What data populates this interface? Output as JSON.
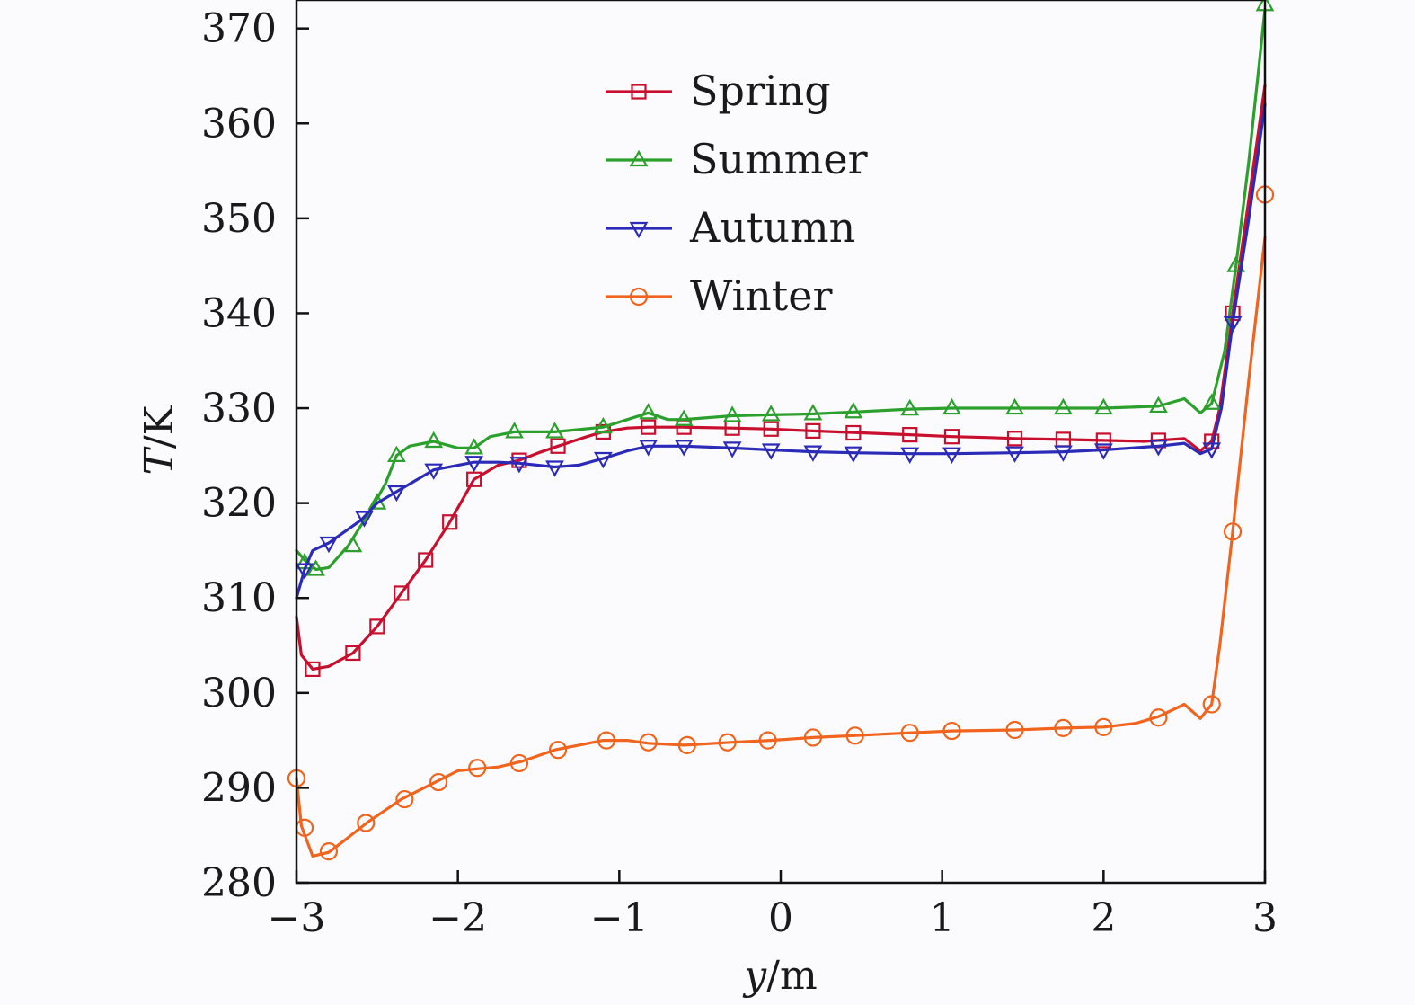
{
  "chart_data": {
    "type": "line",
    "title": "",
    "xlabel": "y/m",
    "ylabel": "T/K",
    "xlim": [
      -3,
      3
    ],
    "ylim": [
      280,
      373
    ],
    "xticks": [
      -3,
      -2,
      -1,
      0,
      1,
      2,
      3
    ],
    "xtick_labels": [
      "−3",
      "−2",
      "−1",
      "0",
      "1",
      "2",
      "3"
    ],
    "yticks": [
      280,
      290,
      300,
      310,
      320,
      330,
      340,
      350,
      360,
      370
    ],
    "ytick_labels": [
      "280",
      "290",
      "300",
      "310",
      "320",
      "330",
      "340",
      "350",
      "360",
      "370"
    ],
    "legend_position": "upper-center",
    "series": [
      {
        "name": "Spring",
        "color": "#c8102e",
        "marker": "square",
        "x": [
          -3.0,
          -2.97,
          -2.9,
          -2.8,
          -2.65,
          -2.5,
          -2.35,
          -2.2,
          -2.05,
          -1.9,
          -1.75,
          -1.62,
          -1.5,
          -1.38,
          -1.2,
          -1.1,
          -0.95,
          -0.82,
          -0.6,
          -0.3,
          -0.06,
          0.2,
          0.5,
          0.8,
          1.06,
          1.3,
          1.45,
          1.75,
          2.0,
          2.25,
          2.34,
          2.5,
          2.6,
          2.67,
          2.72,
          2.8,
          2.9,
          3.0
        ],
        "y": [
          308.0,
          304.0,
          302.5,
          302.8,
          304.2,
          307.0,
          310.5,
          314.0,
          318.0,
          322.5,
          324.0,
          324.5,
          325.3,
          326.0,
          327.0,
          327.5,
          327.9,
          328.0,
          328.0,
          327.9,
          327.8,
          327.6,
          327.4,
          327.2,
          327.0,
          326.9,
          326.8,
          326.7,
          326.6,
          326.5,
          326.6,
          326.8,
          325.5,
          326.5,
          330.0,
          340.0,
          352.0,
          364.0
        ],
        "marker_x": [
          -2.9,
          -2.65,
          -2.5,
          -2.35,
          -2.2,
          -2.05,
          -1.9,
          -1.62,
          -1.38,
          -1.1,
          -0.82,
          -0.6,
          -0.3,
          -0.06,
          0.2,
          0.45,
          0.8,
          1.06,
          1.45,
          1.75,
          2.0,
          2.34,
          2.67,
          2.8
        ],
        "marker_y": [
          302.5,
          304.2,
          307.0,
          310.5,
          314.0,
          318.0,
          322.5,
          324.5,
          326.0,
          327.5,
          328.0,
          328.0,
          327.9,
          327.8,
          327.6,
          327.4,
          327.2,
          327.0,
          326.8,
          326.7,
          326.6,
          326.6,
          326.5,
          340.0
        ]
      },
      {
        "name": "Summer",
        "color": "#2ca02c",
        "marker": "triangle-up",
        "x": [
          -3.0,
          -2.95,
          -2.88,
          -2.8,
          -2.68,
          -2.55,
          -2.45,
          -2.38,
          -2.3,
          -2.15,
          -2.0,
          -1.9,
          -1.8,
          -1.65,
          -1.4,
          -1.1,
          -0.95,
          -0.82,
          -0.7,
          -0.6,
          -0.3,
          -0.06,
          0.2,
          0.45,
          0.8,
          1.06,
          1.45,
          1.75,
          2.0,
          2.34,
          2.5,
          2.6,
          2.67,
          2.75,
          2.82,
          2.9,
          3.0
        ],
        "y": [
          315.0,
          314.0,
          313.0,
          313.2,
          315.5,
          319.0,
          322.0,
          325.0,
          326.0,
          326.5,
          325.8,
          325.8,
          327.0,
          327.5,
          327.5,
          328.0,
          328.8,
          329.5,
          328.8,
          328.8,
          329.2,
          329.3,
          329.4,
          329.6,
          329.9,
          330.0,
          330.0,
          330.0,
          330.0,
          330.2,
          331.0,
          329.5,
          330.5,
          336.0,
          345.0,
          356.0,
          372.0
        ],
        "marker_x": [
          -2.95,
          -2.88,
          -2.65,
          -2.5,
          -2.38,
          -2.15,
          -1.9,
          -1.65,
          -1.4,
          -1.1,
          -0.82,
          -0.6,
          -0.3,
          -0.06,
          0.2,
          0.45,
          0.8,
          1.06,
          1.45,
          1.75,
          2.0,
          2.34,
          2.67,
          2.82,
          3.0
        ],
        "marker_y": [
          313.7,
          313.0,
          315.5,
          320.0,
          325.0,
          326.5,
          325.8,
          327.5,
          327.5,
          328.0,
          329.5,
          328.8,
          329.2,
          329.3,
          329.4,
          329.6,
          329.9,
          330.0,
          330.0,
          330.0,
          330.0,
          330.2,
          330.5,
          345.0,
          372.5
        ]
      },
      {
        "name": "Autumn",
        "color": "#2b2bb8",
        "marker": "triangle-down",
        "x": [
          -3.0,
          -2.95,
          -2.9,
          -2.8,
          -2.7,
          -2.6,
          -2.5,
          -2.35,
          -2.15,
          -1.9,
          -1.75,
          -1.62,
          -1.4,
          -1.25,
          -1.1,
          -0.95,
          -0.82,
          -0.6,
          -0.3,
          -0.06,
          0.2,
          0.45,
          0.8,
          1.06,
          1.45,
          1.75,
          2.0,
          2.34,
          2.5,
          2.6,
          2.67,
          2.73,
          2.8,
          2.9,
          3.0
        ],
        "y": [
          310.0,
          313.0,
          315.0,
          315.8,
          317.0,
          318.2,
          320.0,
          321.5,
          323.5,
          324.3,
          324.3,
          324.2,
          323.8,
          324.0,
          324.7,
          325.5,
          326.0,
          326.0,
          325.8,
          325.6,
          325.4,
          325.3,
          325.2,
          325.2,
          325.3,
          325.4,
          325.6,
          326.0,
          326.3,
          325.2,
          325.7,
          330.0,
          339.0,
          350.0,
          362.0
        ],
        "marker_x": [
          -2.95,
          -2.8,
          -2.58,
          -2.38,
          -2.15,
          -1.9,
          -1.62,
          -1.4,
          -1.1,
          -0.82,
          -0.6,
          -0.3,
          -0.06,
          0.2,
          0.45,
          0.8,
          1.06,
          1.45,
          1.75,
          2.0,
          2.34,
          2.67,
          2.8
        ],
        "marker_y": [
          313.0,
          315.8,
          318.5,
          321.2,
          323.5,
          324.3,
          324.2,
          323.8,
          324.7,
          326.0,
          326.0,
          325.8,
          325.6,
          325.4,
          325.3,
          325.2,
          325.2,
          325.3,
          325.4,
          325.6,
          326.0,
          325.7,
          339.0
        ]
      },
      {
        "name": "Winter",
        "color": "#f0641e",
        "marker": "circle",
        "x": [
          -3.0,
          -2.97,
          -2.9,
          -2.8,
          -2.7,
          -2.55,
          -2.35,
          -2.15,
          -2.0,
          -1.88,
          -1.75,
          -1.6,
          -1.4,
          -1.25,
          -1.1,
          -0.95,
          -0.82,
          -0.6,
          -0.3,
          -0.06,
          0.2,
          0.45,
          0.8,
          1.06,
          1.45,
          1.75,
          2.0,
          2.2,
          2.34,
          2.5,
          2.6,
          2.67,
          2.72,
          2.8,
          2.9,
          3.0
        ],
        "y": [
          291.0,
          286.0,
          282.8,
          283.2,
          284.5,
          286.5,
          288.8,
          290.5,
          291.8,
          292.0,
          292.2,
          292.8,
          294.0,
          294.5,
          295.0,
          295.0,
          294.7,
          294.5,
          294.8,
          295.0,
          295.3,
          295.5,
          295.8,
          296.0,
          296.1,
          296.3,
          296.4,
          296.8,
          297.5,
          298.8,
          297.3,
          298.8,
          305.0,
          317.0,
          333.0,
          348.0
        ],
        "marker_x": [
          -3.0,
          -2.95,
          -2.8,
          -2.57,
          -2.33,
          -2.12,
          -1.88,
          -1.62,
          -1.38,
          -1.08,
          -0.82,
          -0.58,
          -0.33,
          -0.08,
          0.2,
          0.46,
          0.8,
          1.06,
          1.45,
          1.75,
          2.0,
          2.34,
          2.67,
          2.8,
          3.0
        ],
        "marker_y": [
          291.0,
          285.8,
          283.3,
          286.3,
          288.8,
          290.6,
          292.1,
          292.6,
          294.0,
          295.0,
          294.8,
          294.5,
          294.8,
          295.0,
          295.3,
          295.5,
          295.8,
          296.0,
          296.1,
          296.3,
          296.4,
          297.4,
          298.8,
          317.0,
          352.5
        ]
      }
    ]
  }
}
